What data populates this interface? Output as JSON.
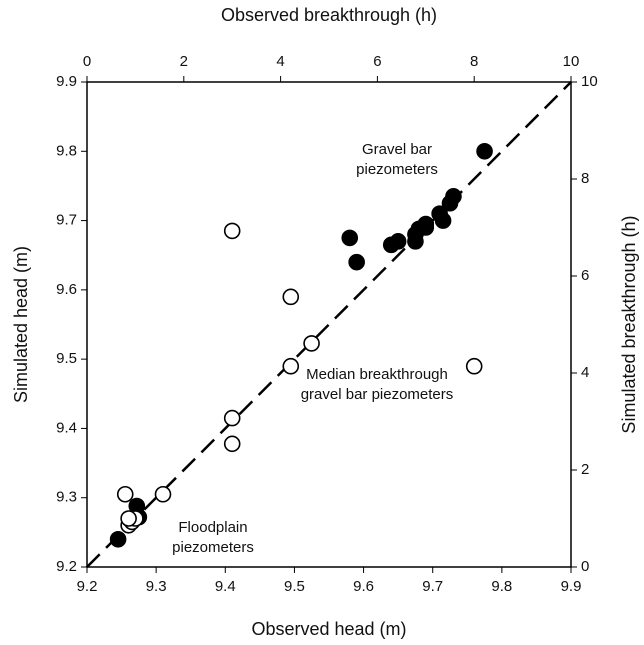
{
  "chart_data": {
    "type": "scatter",
    "xlabel": "Observed head (m)",
    "ylabel": "Simulated head (m)",
    "x2label": "Observed breakthrough (h)",
    "y2label": "Simulated breakthrough (h)",
    "xlim": [
      9.2,
      9.9
    ],
    "ylim": [
      9.2,
      9.9
    ],
    "x2lim": [
      0,
      10
    ],
    "y2lim": [
      0,
      10
    ],
    "xticks": [
      9.2,
      9.3,
      9.4,
      9.5,
      9.6,
      9.7,
      9.8,
      9.9
    ],
    "yticks": [
      9.2,
      9.3,
      9.4,
      9.5,
      9.6,
      9.7,
      9.8,
      9.9
    ],
    "x2ticks": [
      0,
      2,
      4,
      6,
      8,
      10
    ],
    "y2ticks": [
      0,
      2,
      4,
      6,
      8,
      10
    ],
    "series": [
      {
        "marker_fill": "filled",
        "color": "#000000",
        "x": [
          9.245,
          9.272,
          9.275,
          9.58,
          9.59,
          9.64,
          9.65,
          9.675,
          9.675,
          9.68,
          9.69,
          9.69,
          9.71,
          9.715,
          9.725,
          9.73,
          9.775
        ],
        "values": [
          9.24,
          9.288,
          9.272,
          9.675,
          9.64,
          9.665,
          9.67,
          9.67,
          9.68,
          9.688,
          9.69,
          9.695,
          9.71,
          9.7,
          9.725,
          9.735,
          9.8
        ]
      },
      {
        "marker_fill": "open",
        "color": "#000000",
        "axis": "y2",
        "x": [
          0.79,
          1.57,
          0.86,
          0.93,
          1.0,
          0.86,
          3.0,
          3.0,
          3.0,
          4.21,
          4.21,
          4.64,
          8.0
        ],
        "values": [
          1.5,
          1.5,
          0.86,
          0.93,
          1.0,
          1.0,
          6.93,
          3.07,
          2.54,
          5.57,
          4.14,
          4.61,
          4.14
        ]
      }
    ],
    "annotations": [
      {
        "lines": [
          "Gravel bar",
          "piezometers"
        ]
      },
      {
        "lines": [
          "Median breakthrough",
          "gravel bar piezometers"
        ]
      },
      {
        "lines": [
          "Floodplain",
          "piezometers"
        ]
      }
    ]
  }
}
